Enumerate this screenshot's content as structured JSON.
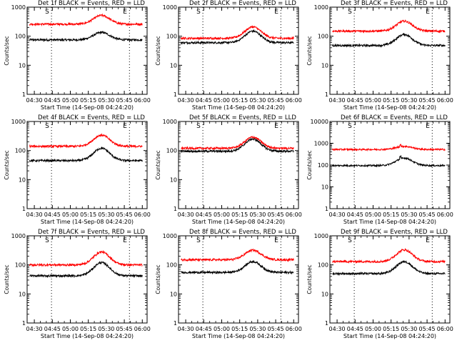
{
  "colors": {
    "events": "#000000",
    "lld": "#ff0000",
    "axis": "#000000",
    "marker": "#000000"
  },
  "x_tick_labels": [
    "04:30",
    "04:45",
    "05:00",
    "05:15",
    "05:30",
    "05:45",
    "06:00"
  ],
  "x_tick_minutes": [
    270,
    285,
    300,
    315,
    330,
    345,
    360
  ],
  "x_range_minutes": [
    264,
    364
  ],
  "marker_minutes": [
    284.3,
    349.3
  ],
  "marker_labels": [
    "S",
    "E"
  ],
  "xlabel": "Start Time (14-Sep-08 04:24:20)",
  "ylabel": "Counts/sec",
  "chart_data": [
    {
      "type": "line",
      "title": "Det 1f BLACK = Events, RED = LLD",
      "ylog": true,
      "ylim": [
        1,
        1000
      ],
      "yticks": [
        1,
        10,
        100,
        1000
      ],
      "series": [
        {
          "name": "Events",
          "color": "#000000",
          "base": 75,
          "peak": 135
        },
        {
          "name": "LLD",
          "color": "#ff0000",
          "base": 260,
          "peak": 520
        }
      ]
    },
    {
      "type": "line",
      "title": "Det 2f BLACK = Events, RED = LLD",
      "ylog": true,
      "ylim": [
        1,
        1000
      ],
      "yticks": [
        1,
        10,
        100,
        1000
      ],
      "series": [
        {
          "name": "Events",
          "color": "#000000",
          "base": 60,
          "peak": 150
        },
        {
          "name": "LLD",
          "color": "#ff0000",
          "base": 85,
          "peak": 210
        }
      ]
    },
    {
      "type": "line",
      "title": "Det 3f BLACK = Events, RED = LLD",
      "ylog": true,
      "ylim": [
        1,
        1000
      ],
      "yticks": [
        1,
        10,
        100,
        1000
      ],
      "series": [
        {
          "name": "Events",
          "color": "#000000",
          "base": 48,
          "peak": 115
        },
        {
          "name": "LLD",
          "color": "#ff0000",
          "base": 150,
          "peak": 330
        }
      ]
    },
    {
      "type": "line",
      "title": "Det 4f BLACK = Events, RED = LLD",
      "ylog": true,
      "ylim": [
        1,
        1000
      ],
      "yticks": [
        1,
        10,
        100,
        1000
      ],
      "series": [
        {
          "name": "Events",
          "color": "#000000",
          "base": 45,
          "peak": 120
        },
        {
          "name": "LLD",
          "color": "#ff0000",
          "base": 140,
          "peak": 340
        }
      ]
    },
    {
      "type": "line",
      "title": "Det 5f BLACK = Events, RED = LLD",
      "ylog": true,
      "ylim": [
        1,
        1000
      ],
      "yticks": [
        1,
        10,
        100,
        1000
      ],
      "series": [
        {
          "name": "Events",
          "color": "#000000",
          "base": 95,
          "peak": 250
        },
        {
          "name": "LLD",
          "color": "#ff0000",
          "base": 120,
          "peak": 290
        }
      ]
    },
    {
      "type": "line",
      "title": "Det 6f BLACK = Events, RED = LLD",
      "ylog": true,
      "ylim": [
        1,
        10000
      ],
      "yticks": [
        1,
        10,
        100,
        1000,
        10000
      ],
      "series": [
        {
          "name": "Events",
          "color": "#000000",
          "base": 95,
          "peak": 210
        },
        {
          "name": "LLD",
          "color": "#ff0000",
          "base": 520,
          "peak": 720
        }
      ]
    },
    {
      "type": "line",
      "title": "Det 7f BLACK = Events, RED = LLD",
      "ylog": true,
      "ylim": [
        1,
        1000
      ],
      "yticks": [
        1,
        10,
        100,
        1000
      ],
      "series": [
        {
          "name": "Events",
          "color": "#000000",
          "base": 42,
          "peak": 120
        },
        {
          "name": "LLD",
          "color": "#ff0000",
          "base": 100,
          "peak": 280
        }
      ]
    },
    {
      "type": "line",
      "title": "Det 8f BLACK = Events, RED = LLD",
      "ylog": true,
      "ylim": [
        1,
        1000
      ],
      "yticks": [
        1,
        10,
        100,
        1000
      ],
      "series": [
        {
          "name": "Events",
          "color": "#000000",
          "base": 55,
          "peak": 130
        },
        {
          "name": "LLD",
          "color": "#ff0000",
          "base": 150,
          "peak": 320
        }
      ]
    },
    {
      "type": "line",
      "title": "Det 9f BLACK = Events, RED = LLD",
      "ylog": true,
      "ylim": [
        1,
        1000
      ],
      "yticks": [
        1,
        10,
        100,
        1000
      ],
      "series": [
        {
          "name": "Events",
          "color": "#000000",
          "base": 50,
          "peak": 130
        },
        {
          "name": "LLD",
          "color": "#ff0000",
          "base": 130,
          "peak": 330
        }
      ]
    }
  ]
}
